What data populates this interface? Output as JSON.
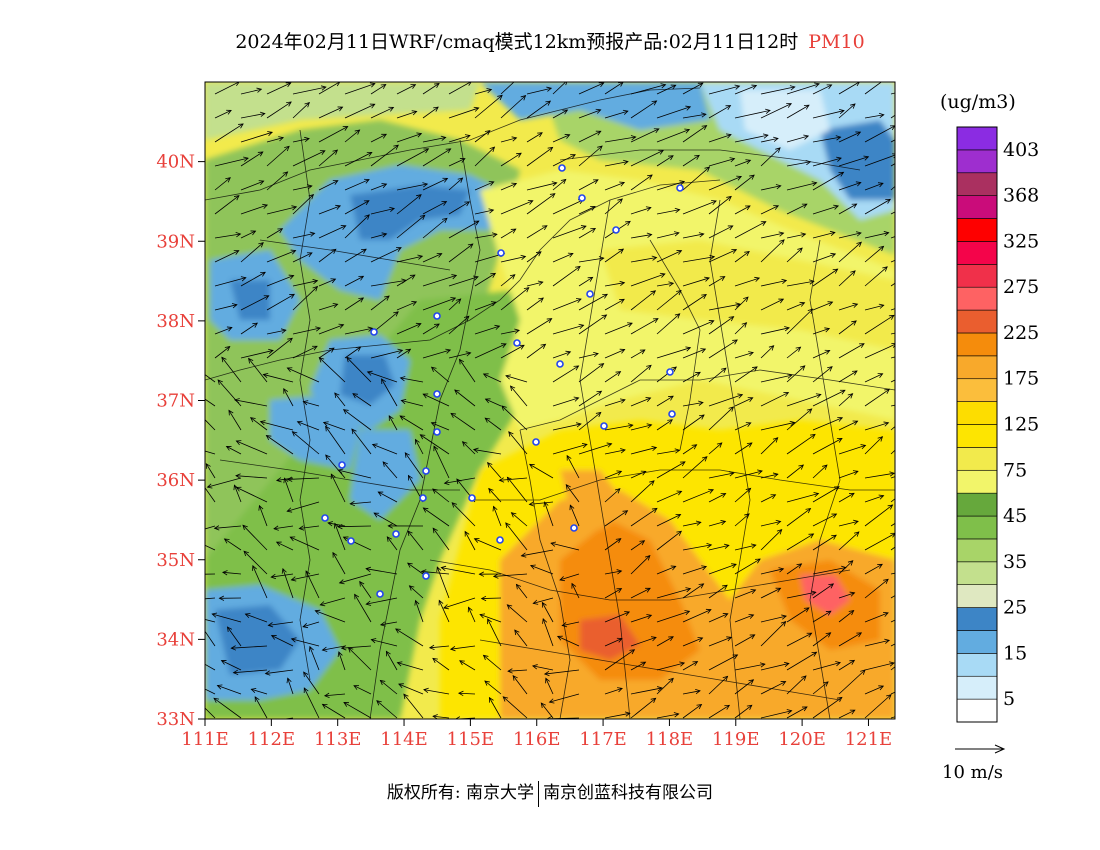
{
  "title": {
    "main": "2024年02月11日WRF/cmaq模式12km预报产品:02月11日12时",
    "pollutant": "PM10"
  },
  "map": {
    "lat_labels": [
      "40N",
      "39N",
      "38N",
      "37N",
      "36N",
      "35N",
      "34N",
      "33N"
    ],
    "lat_values": [
      40,
      39,
      38,
      37,
      36,
      35,
      34,
      33
    ],
    "lon_labels": [
      "111E",
      "112E",
      "113E",
      "114E",
      "115E",
      "116E",
      "117E",
      "118E",
      "119E",
      "120E",
      "121E"
    ],
    "lon_values": [
      111,
      112,
      113,
      114,
      115,
      116,
      117,
      118,
      119,
      120,
      121
    ],
    "lat_range": [
      33,
      41
    ],
    "lon_range": [
      111,
      121.4
    ],
    "wind_arrow_icon": "arrow-icon",
    "station_icon": "circle-icon"
  },
  "colorbar": {
    "unit": "(ug/m3)",
    "colors": [
      "#ffffff",
      "#d6eefa",
      "#a8daf5",
      "#62ace0",
      "#3d85c6",
      "#dfe8c1",
      "#c3e08d",
      "#a8d468",
      "#7fbf4a",
      "#66a83c",
      "#f2f56a",
      "#f2ea4c",
      "#fde501",
      "#fddd00",
      "#fbbe3c",
      "#f8a92b",
      "#f58c0c",
      "#ea5e2f",
      "#fe6263",
      "#f0304a",
      "#f4044a",
      "#fe0000",
      "#ca0c7a",
      "#aa3060",
      "#9e2ecf",
      "#8b2ce2"
    ],
    "labels": [
      "5",
      "15",
      "25",
      "35",
      "45",
      "75",
      "125",
      "175",
      "225",
      "275",
      "325",
      "368",
      "403"
    ],
    "wind_scale": "10 m/s"
  },
  "footer": {
    "copyright": "版权所有: 南京大学",
    "company": "南京创蓝科技有限公司"
  }
}
